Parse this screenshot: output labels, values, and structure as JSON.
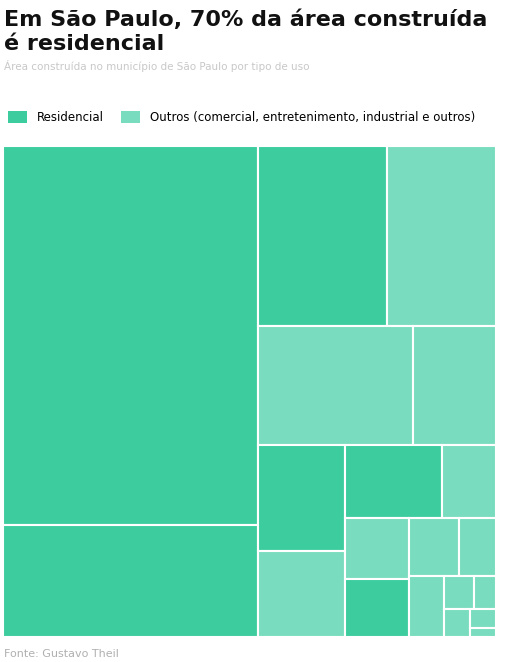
{
  "chart_data": {
    "type": "treemap",
    "title": "Em São Paulo, 70% da área construída é residencial",
    "subtitle": "Área construída no município de São Paulo por tipo de uso",
    "source": "Fonte: Gustavo Theil",
    "series": [
      {
        "name": "Residencial",
        "color": "#3dcc9e"
      },
      {
        "name": "Outros (comercial, entretenimento, industrial e outros)",
        "color": "#7adcbe"
      }
    ],
    "values": [
      39.9,
      11.8,
      9.6,
      8.1,
      7.6,
      4.1,
      3.8,
      3.1,
      2.9,
      1.6,
      1.6,
      1.5,
      1.2,
      0.9,
      0.9,
      0.4,
      0.3,
      0.3,
      0.2,
      0.1
    ],
    "colors": [
      "#3dcc9e",
      "#3dcc9e",
      "#3dcc9e",
      "#7adcbe",
      "#7adcbe",
      "#7adcbe",
      "#3dcc9e",
      "#7adcbe",
      "#3dcc9e",
      "#7adcbe",
      "#7adcbe",
      "#3dcc9e",
      "#7adcbe",
      "#7adcbe",
      "#7adcbe",
      "#7adcbe",
      "#7adcbe",
      "#7adcbe",
      "#7adcbe",
      "#7adcbe"
    ],
    "legend": "upper left",
    "tick_labels": false
  }
}
